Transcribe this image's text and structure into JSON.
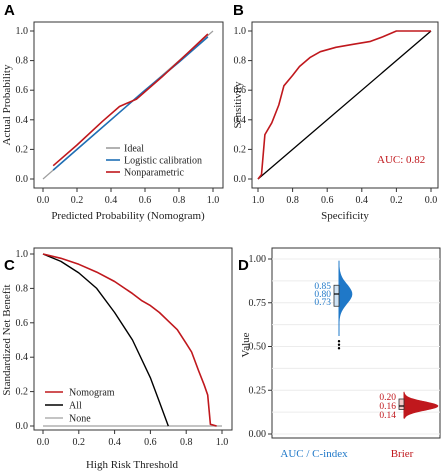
{
  "panels": {
    "A": {
      "letter": "A",
      "xlabel": "Predicted Probability (Nomogram)",
      "ylabel": "Actual Probability"
    },
    "B": {
      "letter": "B",
      "xlabel": "Specificity",
      "ylabel": "Sensitivity",
      "annotation": "AUC: 0.82"
    },
    "C": {
      "letter": "C",
      "xlabel": "High Risk Threshold",
      "ylabel": "Standardized Net Benefit"
    },
    "D": {
      "letter": "D",
      "xlabel": "",
      "ylabel": "Value"
    }
  },
  "colors": {
    "ideal": "#9e9e9e",
    "logistic": "#1f6fb5",
    "nonparam": "#c0181d",
    "all": "#000000",
    "none": "#b0b0b0",
    "auc": "#1f78c8",
    "brier": "#c0181d"
  },
  "chart_data": [
    {
      "panel": "A",
      "type": "line",
      "xlabel": "Predicted Probability (Nomogram)",
      "ylabel": "Actual Probability",
      "xlim": [
        0,
        1
      ],
      "ylim": [
        0,
        1
      ],
      "x_ticks": [
        "0.0",
        "0.2",
        "0.4",
        "0.6",
        "0.8",
        "1.0"
      ],
      "y_ticks": [
        "0.0",
        "0.2",
        "0.4",
        "0.6",
        "0.8",
        "1.0"
      ],
      "legend_position": "bottom-right",
      "series": [
        {
          "name": "Ideal",
          "points": [
            [
              0,
              0
            ],
            [
              1,
              1
            ]
          ]
        },
        {
          "name": "Logistic calibration",
          "points": [
            [
              0.06,
              0.06
            ],
            [
              0.2,
              0.2
            ],
            [
              0.4,
              0.4
            ],
            [
              0.6,
              0.6
            ],
            [
              0.8,
              0.79
            ],
            [
              0.97,
              0.96
            ]
          ]
        },
        {
          "name": "Nonparametric",
          "points": [
            [
              0.06,
              0.09
            ],
            [
              0.2,
              0.23
            ],
            [
              0.35,
              0.39
            ],
            [
              0.45,
              0.49
            ],
            [
              0.55,
              0.54
            ],
            [
              0.7,
              0.69
            ],
            [
              0.85,
              0.85
            ],
            [
              0.97,
              0.98
            ]
          ]
        }
      ]
    },
    {
      "panel": "B",
      "type": "line",
      "xlabel": "Specificity",
      "ylabel": "Sensitivity",
      "xlim": [
        1,
        0
      ],
      "ylim": [
        0,
        1
      ],
      "x_ticks": [
        "1.0",
        "0.8",
        "0.6",
        "0.4",
        "0.2",
        "0.0"
      ],
      "y_ticks": [
        "0.0",
        "0.2",
        "0.4",
        "0.6",
        "0.8",
        "1.0"
      ],
      "annotation": "AUC: 0.82",
      "series": [
        {
          "name": "ROC",
          "points": [
            [
              1.0,
              0.0
            ],
            [
              0.98,
              0.03
            ],
            [
              0.96,
              0.3
            ],
            [
              0.92,
              0.38
            ],
            [
              0.88,
              0.5
            ],
            [
              0.85,
              0.63
            ],
            [
              0.8,
              0.7
            ],
            [
              0.76,
              0.76
            ],
            [
              0.7,
              0.82
            ],
            [
              0.64,
              0.86
            ],
            [
              0.55,
              0.89
            ],
            [
              0.45,
              0.91
            ],
            [
              0.35,
              0.93
            ],
            [
              0.28,
              0.96
            ],
            [
              0.2,
              1.0
            ],
            [
              0.0,
              1.0
            ]
          ]
        },
        {
          "name": "Reference",
          "points": [
            [
              1,
              0
            ],
            [
              0,
              1
            ]
          ]
        }
      ]
    },
    {
      "panel": "C",
      "type": "line",
      "xlabel": "High Risk Threshold",
      "ylabel": "Standardized Net Benefit",
      "xlim": [
        0,
        1
      ],
      "ylim": [
        0,
        1
      ],
      "x_ticks": [
        "0.0",
        "0.2",
        "0.4",
        "0.6",
        "0.8",
        "1.0"
      ],
      "y_ticks": [
        "0.0",
        "0.2",
        "0.4",
        "0.6",
        "0.8",
        "1.0"
      ],
      "legend_position": "bottom-left",
      "series": [
        {
          "name": "Nomogram",
          "points": [
            [
              0.0,
              1.0
            ],
            [
              0.1,
              0.975
            ],
            [
              0.2,
              0.94
            ],
            [
              0.3,
              0.895
            ],
            [
              0.4,
              0.84
            ],
            [
              0.5,
              0.77
            ],
            [
              0.55,
              0.73
            ],
            [
              0.6,
              0.7
            ],
            [
              0.65,
              0.66
            ],
            [
              0.7,
              0.61
            ],
            [
              0.75,
              0.56
            ],
            [
              0.8,
              0.48
            ],
            [
              0.83,
              0.43
            ],
            [
              0.87,
              0.32
            ],
            [
              0.9,
              0.24
            ],
            [
              0.92,
              0.18
            ],
            [
              0.935,
              0.01
            ],
            [
              0.97,
              0.0
            ]
          ]
        },
        {
          "name": "All",
          "points": [
            [
              0.0,
              1.0
            ],
            [
              0.1,
              0.957
            ],
            [
              0.2,
              0.89
            ],
            [
              0.3,
              0.8
            ],
            [
              0.4,
              0.66
            ],
            [
              0.5,
              0.5
            ],
            [
              0.6,
              0.28
            ],
            [
              0.65,
              0.14
            ],
            [
              0.7,
              0.0
            ]
          ]
        },
        {
          "name": "None",
          "points": [
            [
              0,
              0
            ],
            [
              1,
              0
            ]
          ]
        }
      ]
    },
    {
      "panel": "D",
      "type": "violin",
      "xlabel": "",
      "ylabel": "Value",
      "ylim": [
        0,
        1
      ],
      "y_ticks": [
        "0.00",
        "0.25",
        "0.50",
        "0.75",
        "1.00"
      ],
      "categories": [
        "AUC / C-index",
        "Brier"
      ],
      "series": [
        {
          "name": "AUC / C-index",
          "upper": "0.85",
          "median": "0.80",
          "lower": "0.73",
          "upper_value": 0.85,
          "median_value": 0.8,
          "lower_value": 0.73
        },
        {
          "name": "Brier",
          "upper": "0.20",
          "median": "0.16",
          "lower": "0.14",
          "upper_value": 0.2,
          "median_value": 0.16,
          "lower_value": 0.14
        }
      ]
    }
  ]
}
